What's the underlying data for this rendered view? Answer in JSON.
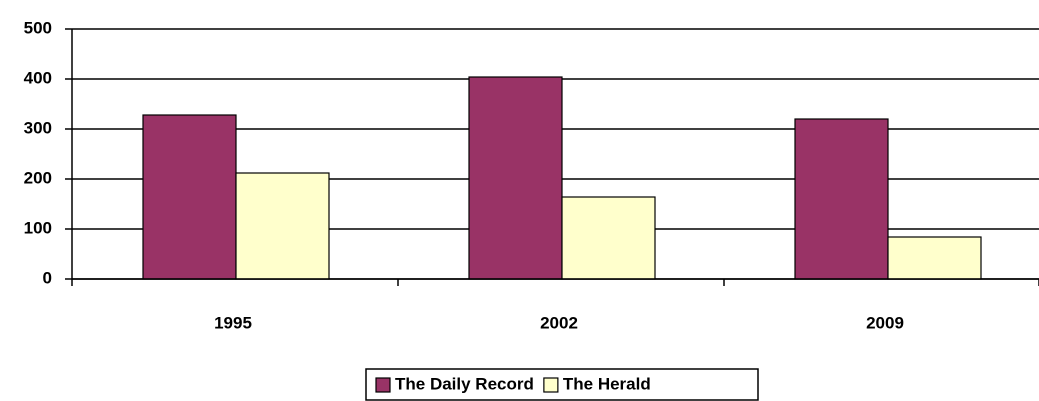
{
  "chart_data": {
    "type": "bar",
    "categories": [
      "1995",
      "2002",
      "2009"
    ],
    "series": [
      {
        "name": "The Daily Record",
        "color": "#993366",
        "values": [
          328,
          404,
          320
        ]
      },
      {
        "name": "The Herald",
        "color": "#ffffcc",
        "values": [
          212,
          164,
          84
        ]
      }
    ],
    "ylim": [
      0,
      500
    ],
    "yticks": [
      0,
      100,
      200,
      300,
      400,
      500
    ],
    "grid": true,
    "legend": "bottom"
  }
}
